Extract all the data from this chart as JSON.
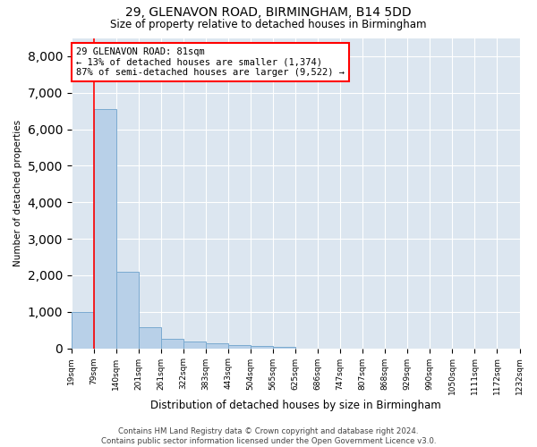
{
  "title": "29, GLENAVON ROAD, BIRMINGHAM, B14 5DD",
  "subtitle": "Size of property relative to detached houses in Birmingham",
  "xlabel": "Distribution of detached houses by size in Birmingham",
  "ylabel": "Number of detached properties",
  "bar_color": "#b8d0e8",
  "bar_edge_color": "#7aaad0",
  "background_color": "#dce6f0",
  "annotation_text": "29 GLENAVON ROAD: 81sqm\n← 13% of detached houses are smaller (1,374)\n87% of semi-detached houses are larger (9,522) →",
  "annotation_box_color": "white",
  "annotation_box_edge_color": "red",
  "vline_color": "red",
  "vline_x": 1,
  "ylim": [
    0,
    8500
  ],
  "yticks": [
    0,
    1000,
    2000,
    3000,
    4000,
    5000,
    6000,
    7000,
    8000
  ],
  "bins": [
    "19sqm",
    "79sqm",
    "140sqm",
    "201sqm",
    "261sqm",
    "322sqm",
    "383sqm",
    "443sqm",
    "504sqm",
    "565sqm",
    "625sqm",
    "686sqm",
    "747sqm",
    "807sqm",
    "868sqm",
    "929sqm",
    "990sqm",
    "1050sqm",
    "1111sqm",
    "1172sqm",
    "1232sqm"
  ],
  "values": [
    1000,
    6550,
    2100,
    570,
    270,
    175,
    130,
    95,
    70,
    45,
    0,
    0,
    0,
    0,
    0,
    0,
    0,
    0,
    0,
    0
  ],
  "footer": "Contains HM Land Registry data © Crown copyright and database right 2024.\nContains public sector information licensed under the Open Government Licence v3.0."
}
